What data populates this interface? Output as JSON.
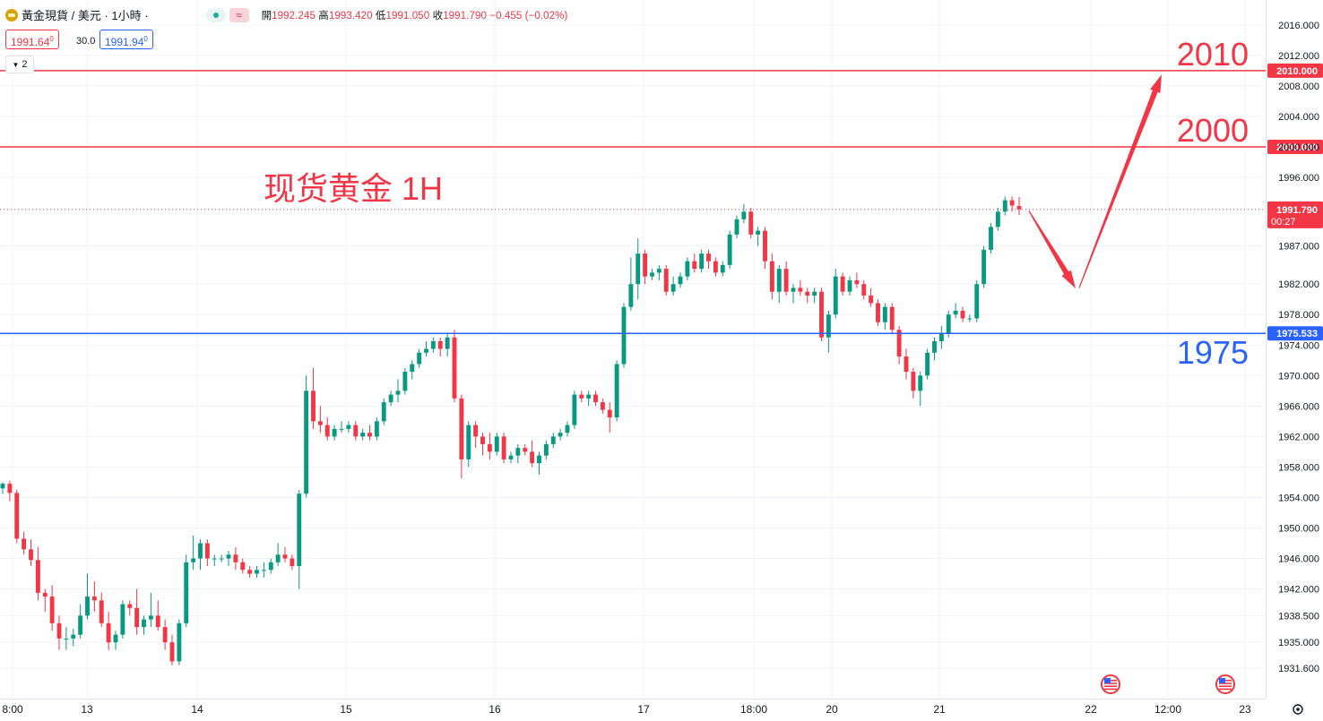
{
  "header": {
    "symbol": "黃金現貨 / 美元 · 1小時 ·",
    "open_label": "開",
    "open": "1992.245",
    "high_label": "高",
    "high": "1993.420",
    "low_label": "低",
    "low": "1991.050",
    "close_label": "收",
    "close": "1991.790",
    "change": "−0.455 (−0.02%)",
    "sell_price": "1991.64",
    "sell_sup": "0",
    "spread": "30.0",
    "buy_price": "1991.94",
    "buy_sup": "0",
    "indicator_count": "2",
    "icons": [
      "gold-symbol-icon",
      "market-status-dot-icon",
      "wave-icon",
      "chevron-down-icon",
      "us-flag-icon",
      "settings-gear-icon"
    ]
  },
  "colors": {
    "up": "#089981",
    "down": "#f23645",
    "resistance": "#f23645",
    "support": "#2962ff",
    "annotation": "#f23645"
  },
  "chart_data": {
    "type": "candlestick",
    "title": "现货黄金 1H",
    "y_axis": {
      "ticks": [
        "2016.000",
        "2012.000",
        "2008.000",
        "2004.000",
        "2000.000",
        "1996.000",
        "1987.000",
        "1982.000",
        "1978.000",
        "1974.000",
        "1970.000",
        "1966.000",
        "1962.000",
        "1958.000",
        "1954.000",
        "1950.000",
        "1946.000",
        "1942.000",
        "1938.500",
        "1935.000",
        "1931.600"
      ],
      "ylim": [
        1930.0,
        2018.0
      ]
    },
    "x_axis": {
      "ticks": [
        "8:00",
        "13",
        "14",
        "15",
        "16",
        "17",
        "18:00",
        "20",
        "21",
        "22",
        "12:00",
        "23"
      ]
    },
    "levels": [
      {
        "label": "2010",
        "axis_label": "2010.000",
        "value": 2010.0,
        "color": "#f23645"
      },
      {
        "label": "2000",
        "axis_label": "2000.000",
        "value": 2000.0,
        "color": "#f23645"
      },
      {
        "label": "1975",
        "axis_label": "1975.533",
        "value": 1975.533,
        "color": "#2962ff"
      }
    ],
    "last_price": {
      "value": "1991.790",
      "countdown": "00:27"
    },
    "projection": [
      [
        1991.6,
        1989.0
      ],
      [
        1981.2,
        1981.5
      ],
      [
        2009.5,
        2008.5
      ]
    ],
    "candles": [
      [
        1955.2,
        1956.0,
        1954.5,
        1955.8
      ],
      [
        1955.8,
        1956.2,
        1953.5,
        1954.6
      ],
      [
        1954.6,
        1955.0,
        1948.0,
        1948.6
      ],
      [
        1948.6,
        1949.5,
        1946.5,
        1947.2
      ],
      [
        1947.2,
        1948.5,
        1945.0,
        1945.8
      ],
      [
        1945.8,
        1947.5,
        1940.5,
        1941.5
      ],
      [
        1941.5,
        1942.0,
        1939.0,
        1941.0
      ],
      [
        1941.0,
        1942.5,
        1936.5,
        1937.5
      ],
      [
        1937.5,
        1938.5,
        1934.0,
        1935.5
      ],
      [
        1935.5,
        1937.0,
        1934.0,
        1935.5
      ],
      [
        1935.5,
        1936.8,
        1934.5,
        1936.0
      ],
      [
        1936.0,
        1940.0,
        1935.5,
        1938.5
      ],
      [
        1938.5,
        1944.0,
        1938.0,
        1941.0
      ],
      [
        1941.0,
        1943.0,
        1939.0,
        1940.5
      ],
      [
        1940.5,
        1941.5,
        1937.0,
        1937.5
      ],
      [
        1937.5,
        1939.0,
        1934.0,
        1935.0
      ],
      [
        1935.0,
        1936.5,
        1934.0,
        1936.0
      ],
      [
        1936.0,
        1940.5,
        1935.5,
        1940.0
      ],
      [
        1940.0,
        1940.5,
        1938.5,
        1939.5
      ],
      [
        1939.5,
        1942.0,
        1936.0,
        1937.0
      ],
      [
        1937.0,
        1938.5,
        1936.0,
        1938.0
      ],
      [
        1938.0,
        1941.5,
        1937.0,
        1938.5
      ],
      [
        1938.5,
        1940.5,
        1936.5,
        1937.0
      ],
      [
        1937.0,
        1938.0,
        1934.0,
        1935.0
      ],
      [
        1935.0,
        1936.0,
        1932.0,
        1932.5
      ],
      [
        1932.5,
        1938.0,
        1932.0,
        1937.5
      ],
      [
        1937.5,
        1946.5,
        1937.0,
        1945.5
      ],
      [
        1945.5,
        1949.0,
        1944.5,
        1946.0
      ],
      [
        1946.0,
        1948.5,
        1944.5,
        1948.0
      ],
      [
        1948.0,
        1948.5,
        1945.0,
        1946.0
      ],
      [
        1946.0,
        1946.5,
        1945.0,
        1946.0
      ],
      [
        1946.0,
        1946.5,
        1945.5,
        1946.0
      ],
      [
        1946.0,
        1947.0,
        1945.0,
        1946.5
      ],
      [
        1946.5,
        1947.5,
        1944.5,
        1945.5
      ],
      [
        1945.5,
        1946.0,
        1944.0,
        1944.5
      ],
      [
        1944.5,
        1945.0,
        1943.5,
        1944.0
      ],
      [
        1944.0,
        1945.0,
        1943.5,
        1944.5
      ],
      [
        1944.5,
        1945.5,
        1943.5,
        1944.5
      ],
      [
        1944.5,
        1946.0,
        1944.0,
        1945.5
      ],
      [
        1945.5,
        1948.0,
        1945.0,
        1946.5
      ],
      [
        1946.5,
        1947.5,
        1945.5,
        1946.0
      ],
      [
        1946.0,
        1946.5,
        1944.5,
        1945.0
      ],
      [
        1945.0,
        1955.0,
        1942.0,
        1954.5
      ],
      [
        1954.5,
        1970.0,
        1954.0,
        1968.0
      ],
      [
        1968.0,
        1971.0,
        1963.0,
        1964.0
      ],
      [
        1964.0,
        1966.0,
        1962.5,
        1963.5
      ],
      [
        1963.5,
        1964.5,
        1961.5,
        1962.0
      ],
      [
        1962.0,
        1963.5,
        1961.5,
        1963.0
      ],
      [
        1963.0,
        1964.0,
        1962.5,
        1963.0
      ],
      [
        1963.0,
        1964.0,
        1962.5,
        1963.5
      ],
      [
        1963.5,
        1964.0,
        1961.5,
        1962.0
      ],
      [
        1962.0,
        1963.0,
        1961.5,
        1962.5
      ],
      [
        1962.5,
        1963.5,
        1961.5,
        1962.0
      ],
      [
        1962.0,
        1964.5,
        1961.5,
        1964.0
      ],
      [
        1964.0,
        1967.0,
        1963.5,
        1966.5
      ],
      [
        1966.5,
        1968.0,
        1966.0,
        1967.5
      ],
      [
        1967.5,
        1969.5,
        1966.5,
        1968.0
      ],
      [
        1968.0,
        1971.0,
        1967.5,
        1970.5
      ],
      [
        1970.5,
        1972.0,
        1969.5,
        1971.5
      ],
      [
        1971.5,
        1973.5,
        1971.0,
        1973.0
      ],
      [
        1973.0,
        1974.5,
        1972.5,
        1973.5
      ],
      [
        1973.5,
        1975.0,
        1973.0,
        1974.5
      ],
      [
        1974.5,
        1975.0,
        1972.5,
        1973.5
      ],
      [
        1973.5,
        1975.5,
        1972.5,
        1975.0
      ],
      [
        1975.0,
        1976.0,
        1966.5,
        1967.0
      ],
      [
        1967.0,
        1967.5,
        1956.5,
        1959.0
      ],
      [
        1959.0,
        1964.0,
        1958.0,
        1963.5
      ],
      [
        1963.5,
        1964.0,
        1960.5,
        1962.0
      ],
      [
        1962.0,
        1962.5,
        1959.5,
        1961.0
      ],
      [
        1961.0,
        1962.5,
        1959.0,
        1960.0
      ],
      [
        1960.0,
        1962.5,
        1959.5,
        1962.0
      ],
      [
        1962.0,
        1962.5,
        1958.5,
        1959.0
      ],
      [
        1959.0,
        1960.0,
        1958.5,
        1959.5
      ],
      [
        1959.5,
        1961.0,
        1958.5,
        1960.5
      ],
      [
        1960.5,
        1961.0,
        1959.5,
        1960.0
      ],
      [
        1960.0,
        1961.5,
        1958.0,
        1958.5
      ],
      [
        1958.5,
        1960.0,
        1957.0,
        1959.5
      ],
      [
        1959.5,
        1961.5,
        1959.0,
        1961.0
      ],
      [
        1961.0,
        1962.5,
        1960.5,
        1962.0
      ],
      [
        1962.0,
        1963.0,
        1961.5,
        1962.5
      ],
      [
        1962.5,
        1964.0,
        1962.0,
        1963.5
      ],
      [
        1963.5,
        1968.0,
        1963.0,
        1967.5
      ],
      [
        1967.5,
        1968.0,
        1966.5,
        1967.0
      ],
      [
        1967.0,
        1968.0,
        1966.0,
        1967.5
      ],
      [
        1967.5,
        1968.0,
        1966.0,
        1966.5
      ],
      [
        1966.5,
        1967.0,
        1965.0,
        1965.5
      ],
      [
        1965.5,
        1966.5,
        1962.5,
        1964.5
      ],
      [
        1964.5,
        1972.0,
        1964.0,
        1971.5
      ],
      [
        1971.5,
        1979.5,
        1971.0,
        1979.0
      ],
      [
        1979.0,
        1985.5,
        1978.5,
        1982.0
      ],
      [
        1982.0,
        1988.0,
        1980.0,
        1986.0
      ],
      [
        1986.0,
        1986.5,
        1982.0,
        1983.0
      ],
      [
        1983.0,
        1984.0,
        1982.5,
        1983.5
      ],
      [
        1983.5,
        1984.5,
        1982.5,
        1984.0
      ],
      [
        1984.0,
        1984.5,
        1980.5,
        1981.0
      ],
      [
        1981.0,
        1983.0,
        1980.5,
        1982.0
      ],
      [
        1982.0,
        1983.5,
        1981.5,
        1983.0
      ],
      [
        1983.0,
        1985.5,
        1982.5,
        1985.0
      ],
      [
        1985.0,
        1986.0,
        1983.5,
        1984.0
      ],
      [
        1984.0,
        1986.5,
        1983.5,
        1986.0
      ],
      [
        1986.0,
        1986.5,
        1984.0,
        1985.0
      ],
      [
        1985.0,
        1985.5,
        1983.0,
        1983.5
      ],
      [
        1983.5,
        1985.0,
        1983.0,
        1984.5
      ],
      [
        1984.5,
        1989.0,
        1984.0,
        1988.5
      ],
      [
        1988.5,
        1991.0,
        1988.0,
        1990.5
      ],
      [
        1990.5,
        1992.5,
        1990.0,
        1991.5
      ],
      [
        1991.5,
        1992.0,
        1988.0,
        1988.5
      ],
      [
        1988.5,
        1989.5,
        1987.0,
        1989.0
      ],
      [
        1989.0,
        1989.5,
        1984.0,
        1985.0
      ],
      [
        1985.0,
        1986.0,
        1980.0,
        1981.0
      ],
      [
        1981.0,
        1984.5,
        1979.5,
        1984.0
      ],
      [
        1984.0,
        1985.0,
        1980.5,
        1981.0
      ],
      [
        1981.0,
        1982.0,
        1979.5,
        1981.5
      ],
      [
        1981.5,
        1982.5,
        1980.5,
        1981.0
      ],
      [
        1981.0,
        1981.5,
        1979.5,
        1980.5
      ],
      [
        1980.5,
        1981.5,
        1979.5,
        1981.0
      ],
      [
        1981.0,
        1981.5,
        1974.5,
        1975.0
      ],
      [
        1975.0,
        1978.5,
        1973.0,
        1978.0
      ],
      [
        1978.0,
        1984.0,
        1977.5,
        1983.0
      ],
      [
        1983.0,
        1983.5,
        1980.5,
        1981.0
      ],
      [
        1981.0,
        1983.0,
        1980.5,
        1982.5
      ],
      [
        1982.5,
        1983.5,
        1981.5,
        1982.0
      ],
      [
        1982.0,
        1982.5,
        1980.0,
        1980.5
      ],
      [
        1980.5,
        1981.5,
        1979.0,
        1979.5
      ],
      [
        1979.5,
        1980.0,
        1976.5,
        1977.0
      ],
      [
        1977.0,
        1979.5,
        1976.0,
        1979.0
      ],
      [
        1979.0,
        1979.5,
        1975.5,
        1976.0
      ],
      [
        1976.0,
        1976.5,
        1971.5,
        1972.5
      ],
      [
        1972.5,
        1973.5,
        1969.5,
        1970.5
      ],
      [
        1970.5,
        1971.0,
        1967.0,
        1968.0
      ],
      [
        1968.0,
        1970.5,
        1966.0,
        1970.0
      ],
      [
        1970.0,
        1973.5,
        1969.5,
        1973.0
      ],
      [
        1973.0,
        1975.0,
        1972.0,
        1974.5
      ],
      [
        1974.5,
        1976.5,
        1973.5,
        1975.5
      ],
      [
        1975.5,
        1978.5,
        1975.0,
        1978.0
      ],
      [
        1978.0,
        1979.5,
        1977.5,
        1978.5
      ],
      [
        1978.5,
        1979.0,
        1977.0,
        1977.5
      ],
      [
        1977.5,
        1978.0,
        1977.0,
        1977.5
      ],
      [
        1977.5,
        1982.5,
        1977.0,
        1982.0
      ],
      [
        1982.0,
        1987.0,
        1981.5,
        1986.5
      ],
      [
        1986.5,
        1990.0,
        1986.0,
        1989.5
      ],
      [
        1989.5,
        1992.0,
        1989.0,
        1991.5
      ],
      [
        1991.5,
        1993.5,
        1991.0,
        1993.0
      ],
      [
        1993.0,
        1993.5,
        1991.5,
        1992.3
      ],
      [
        1992.245,
        1993.42,
        1991.05,
        1991.79
      ]
    ]
  }
}
